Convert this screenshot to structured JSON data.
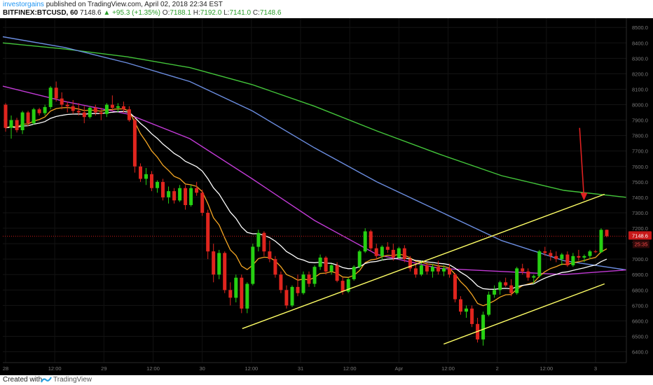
{
  "header": {
    "user": "investorgains",
    "published": "published on TradingView.com, April 02, 2018 22:34 EST",
    "symbol": "BITFINEX:BTCUSD, 60",
    "last": "7148.6",
    "change": "+95.3 (+1.35%)",
    "o_label": "O:",
    "o_value": "7188.1",
    "h_label": "H:",
    "h_value": "7192.0",
    "l_label": "L:",
    "l_value": "7141.0",
    "c_label": "C:",
    "c_value": "7148.6"
  },
  "footer": {
    "created": "Created with",
    "brand": "TradingView"
  },
  "chart_data": {
    "type": "candlestick",
    "ylim": [
      6330,
      8560
    ],
    "y_ticks": [
      "6400.0",
      "6500.0",
      "6600.0",
      "6700.0",
      "6800.0",
      "6900.0",
      "7000.0",
      "7100.0",
      "7200.0",
      "7300.0",
      "7400.0",
      "7500.0",
      "7600.0",
      "7700.0",
      "7800.0",
      "7900.0",
      "8000.0",
      "8100.0",
      "8200.0",
      "8300.0",
      "8400.0",
      "8500.0"
    ],
    "x_ticks": [
      "28",
      "12:00",
      "29",
      "12:00",
      "30",
      "12:00",
      "31",
      "12:00",
      "Apr",
      "12:00",
      "2",
      "12:00",
      "3"
    ],
    "last_price_label": "7148.6",
    "countdown_label": "25:35",
    "colors": {
      "up": "#26d012",
      "down": "#e0251e",
      "ema_fast": "#f5a623",
      "ema_slow": "#ffffff",
      "ma_purple": "#c23ad6",
      "ma_blue": "#6b8de0",
      "ma_green": "#43c53a",
      "trendline": "#ffff66",
      "arrow": "#e02020",
      "price_line": "#c8191a"
    },
    "candles": [
      [
        8000,
        8010,
        7825,
        7850
      ],
      [
        7850,
        7930,
        7780,
        7900
      ],
      [
        7900,
        7915,
        7820,
        7835
      ],
      [
        7835,
        7960,
        7810,
        7950
      ],
      [
        7950,
        7960,
        7860,
        7880
      ],
      [
        7880,
        7980,
        7870,
        7970
      ],
      [
        7970,
        7980,
        7930,
        7945
      ],
      [
        7945,
        8000,
        7930,
        7985
      ],
      [
        7985,
        8120,
        7970,
        8110
      ],
      [
        8110,
        8150,
        8020,
        8040
      ],
      [
        8040,
        8080,
        7970,
        8000
      ],
      [
        8000,
        8020,
        7950,
        7990
      ],
      [
        7990,
        8030,
        7940,
        7960
      ],
      [
        7960,
        8010,
        7930,
        7950
      ],
      [
        7950,
        7990,
        7880,
        7920
      ],
      [
        7920,
        7990,
        7910,
        7980
      ],
      [
        7980,
        8000,
        7930,
        7950
      ],
      [
        7950,
        7980,
        7900,
        7940
      ],
      [
        7940,
        8010,
        7920,
        8000
      ],
      [
        8000,
        8060,
        7960,
        7980
      ],
      [
        7980,
        8010,
        7950,
        7990
      ],
      [
        7990,
        8020,
        7950,
        7970
      ],
      [
        7970,
        7990,
        7890,
        7900
      ],
      [
        7900,
        7920,
        7560,
        7600
      ],
      [
        7600,
        7620,
        7500,
        7520
      ],
      [
        7520,
        7590,
        7480,
        7550
      ],
      [
        7550,
        7570,
        7440,
        7460
      ],
      [
        7460,
        7510,
        7430,
        7500
      ],
      [
        7500,
        7520,
        7380,
        7400
      ],
      [
        7400,
        7470,
        7360,
        7440
      ],
      [
        7440,
        7460,
        7360,
        7380
      ],
      [
        7380,
        7480,
        7370,
        7460
      ],
      [
        7460,
        7480,
        7320,
        7350
      ],
      [
        7350,
        7480,
        7340,
        7460
      ],
      [
        7460,
        7500,
        7410,
        7430
      ],
      [
        7430,
        7450,
        7280,
        7300
      ],
      [
        7300,
        7320,
        7000,
        7050
      ],
      [
        7050,
        7100,
        6850,
        6900
      ],
      [
        6900,
        7060,
        6870,
        7040
      ],
      [
        7040,
        7050,
        6780,
        6800
      ],
      [
        6800,
        6850,
        6700,
        6750
      ],
      [
        6750,
        6900,
        6720,
        6880
      ],
      [
        6880,
        6900,
        6650,
        6680
      ],
      [
        6680,
        6850,
        6650,
        6840
      ],
      [
        6840,
        7100,
        6830,
        7080
      ],
      [
        7080,
        7190,
        7050,
        7170
      ],
      [
        7170,
        7180,
        7020,
        7050
      ],
      [
        7050,
        7120,
        6980,
        7000
      ],
      [
        7000,
        7020,
        6880,
        6900
      ],
      [
        6900,
        6920,
        6780,
        6800
      ],
      [
        6800,
        6830,
        6680,
        6700
      ],
      [
        6700,
        6830,
        6690,
        6820
      ],
      [
        6820,
        6900,
        6760,
        6780
      ],
      [
        6780,
        6920,
        6770,
        6900
      ],
      [
        6900,
        6920,
        6820,
        6840
      ],
      [
        6840,
        6960,
        6820,
        6950
      ],
      [
        6950,
        7030,
        6930,
        7010
      ],
      [
        7010,
        7020,
        6900,
        6920
      ],
      [
        6920,
        6970,
        6900,
        6960
      ],
      [
        6960,
        6980,
        6850,
        6860
      ],
      [
        6860,
        6880,
        6770,
        6790
      ],
      [
        6790,
        6880,
        6780,
        6870
      ],
      [
        6870,
        6960,
        6860,
        6950
      ],
      [
        6950,
        7060,
        6940,
        7050
      ],
      [
        7050,
        7200,
        7040,
        7180
      ],
      [
        7180,
        7190,
        7050,
        7070
      ],
      [
        7070,
        7100,
        7000,
        7020
      ],
      [
        7020,
        7090,
        6990,
        7080
      ],
      [
        7080,
        7110,
        7040,
        7060
      ],
      [
        7060,
        7100,
        6990,
        7010
      ],
      [
        7010,
        7080,
        7000,
        7070
      ],
      [
        7070,
        7090,
        6980,
        7000
      ],
      [
        7000,
        7020,
        6920,
        6940
      ],
      [
        6940,
        6980,
        6880,
        6900
      ],
      [
        6900,
        6990,
        6890,
        6960
      ],
      [
        6960,
        6980,
        6900,
        6920
      ],
      [
        6920,
        6970,
        6880,
        6950
      ],
      [
        6950,
        6990,
        6900,
        6920
      ],
      [
        6920,
        6960,
        6890,
        6940
      ],
      [
        6940,
        6970,
        6880,
        6900
      ],
      [
        6900,
        6910,
        6720,
        6740
      ],
      [
        6740,
        6760,
        6640,
        6660
      ],
      [
        6660,
        6700,
        6620,
        6680
      ],
      [
        6680,
        6700,
        6560,
        6580
      ],
      [
        6580,
        6620,
        6460,
        6480
      ],
      [
        6480,
        6660,
        6440,
        6640
      ],
      [
        6640,
        6790,
        6630,
        6770
      ],
      [
        6770,
        6830,
        6750,
        6800
      ],
      [
        6800,
        6860,
        6770,
        6850
      ],
      [
        6850,
        6880,
        6820,
        6830
      ],
      [
        6830,
        6870,
        6760,
        6780
      ],
      [
        6780,
        6950,
        6770,
        6940
      ],
      [
        6940,
        6970,
        6900,
        6920
      ],
      [
        6920,
        6940,
        6860,
        6880
      ],
      [
        6880,
        6900,
        6840,
        6890
      ],
      [
        6890,
        7060,
        6880,
        7050
      ],
      [
        7050,
        7080,
        7020,
        7040
      ],
      [
        7040,
        7060,
        6990,
        7020
      ],
      [
        7020,
        7050,
        6980,
        7000
      ],
      [
        7000,
        7040,
        6960,
        7030
      ],
      [
        7030,
        7050,
        6950,
        6960
      ],
      [
        6960,
        7040,
        6950,
        7020
      ],
      [
        7020,
        7060,
        6990,
        7010
      ],
      [
        7010,
        7030,
        6980,
        7020
      ],
      [
        7020,
        7060,
        7000,
        7050
      ],
      [
        7050,
        7060,
        7040,
        7045
      ],
      [
        7045,
        7200,
        7040,
        7190
      ],
      [
        7190,
        7192,
        7141,
        7148.6
      ]
    ],
    "ma_lines": {
      "green": [
        [
          0.0,
          8400
        ],
        [
          0.1,
          8360
        ],
        [
          0.2,
          8310
        ],
        [
          0.3,
          8240
        ],
        [
          0.4,
          8130
        ],
        [
          0.5,
          7990
        ],
        [
          0.6,
          7830
        ],
        [
          0.7,
          7680
        ],
        [
          0.8,
          7540
        ],
        [
          0.9,
          7445
        ],
        [
          1.0,
          7400
        ]
      ],
      "blue": [
        [
          0.0,
          8440
        ],
        [
          0.1,
          8370
        ],
        [
          0.2,
          8270
        ],
        [
          0.3,
          8150
        ],
        [
          0.4,
          7960
        ],
        [
          0.5,
          7720
        ],
        [
          0.6,
          7500
        ],
        [
          0.7,
          7310
        ],
        [
          0.8,
          7120
        ],
        [
          0.9,
          6990
        ],
        [
          1.0,
          6930
        ]
      ],
      "purple": [
        [
          0.0,
          8120
        ],
        [
          0.1,
          8020
        ],
        [
          0.2,
          7940
        ],
        [
          0.3,
          7780
        ],
        [
          0.4,
          7520
        ],
        [
          0.5,
          7250
        ],
        [
          0.6,
          7030
        ],
        [
          0.7,
          6940
        ],
        [
          0.8,
          6920
        ],
        [
          0.9,
          6900
        ],
        [
          1.0,
          6930
        ]
      ]
    },
    "trendlines": [
      {
        "from": [
          6550,
          0.384
        ],
        "to": [
          7420,
          0.965
        ]
      },
      {
        "from": [
          6450,
          0.707
        ],
        "to": [
          6840,
          0.965
        ]
      }
    ],
    "arrow": {
      "from": [
        7850,
        0.925
      ],
      "to": [
        7380,
        0.932
      ]
    }
  }
}
